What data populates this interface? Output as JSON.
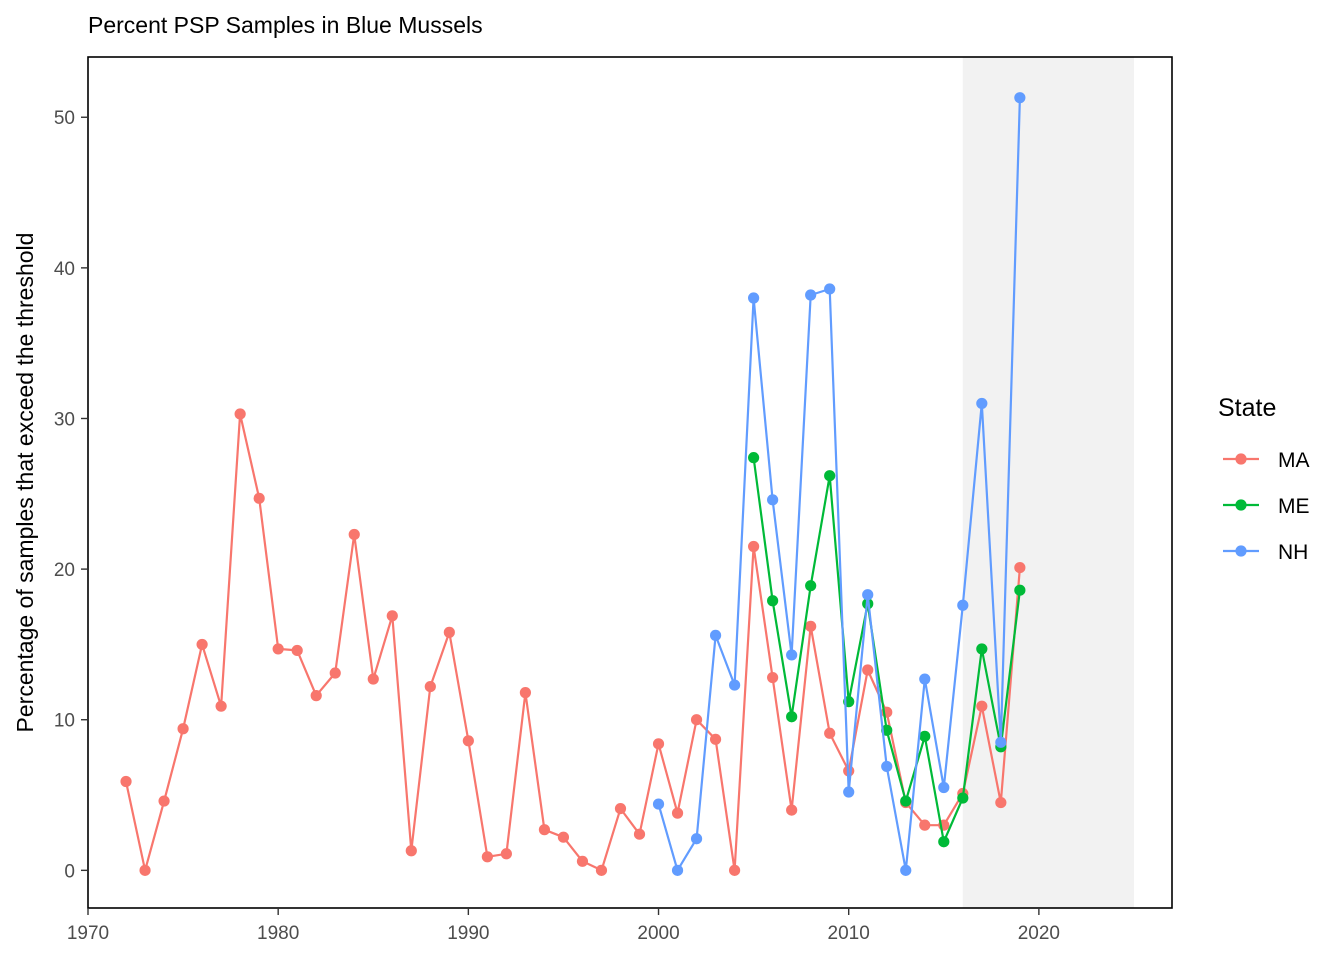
{
  "chart_data": {
    "type": "line",
    "title": "Percent PSP Samples in Blue Mussels",
    "xlabel": "",
    "ylabel": "Percentage of samples that exceed the threshold",
    "xlim": [
      1970,
      2027
    ],
    "ylim": [
      -2.5,
      54
    ],
    "x_ticks": [
      1970,
      1980,
      1990,
      2000,
      2010,
      2020
    ],
    "y_ticks": [
      0,
      10,
      20,
      30,
      40,
      50
    ],
    "grid": false,
    "shaded_region": {
      "x_start": 2016,
      "x_end": 2025
    },
    "legend": {
      "title": "State",
      "position": "right"
    },
    "series": [
      {
        "name": "MA",
        "color": "#F8766D",
        "x": [
          1972,
          1973,
          1974,
          1975,
          1976,
          1977,
          1978,
          1979,
          1980,
          1981,
          1982,
          1983,
          1984,
          1985,
          1986,
          1987,
          1988,
          1989,
          1990,
          1991,
          1992,
          1993,
          1994,
          1995,
          1996,
          1997,
          1998,
          1999,
          2000,
          2001,
          2002,
          2003,
          2004,
          2005,
          2006,
          2007,
          2008,
          2009,
          2010,
          2011,
          2012,
          2013,
          2014,
          2015,
          2016,
          2017,
          2018,
          2019
        ],
        "y": [
          5.9,
          0,
          4.6,
          9.4,
          15.0,
          10.9,
          30.3,
          24.7,
          14.7,
          14.6,
          11.6,
          13.1,
          22.3,
          12.7,
          16.9,
          1.3,
          12.2,
          15.8,
          8.6,
          0.9,
          1.1,
          11.8,
          2.7,
          2.2,
          0.6,
          0,
          4.1,
          2.4,
          8.4,
          3.8,
          10.0,
          8.7,
          0,
          21.5,
          12.8,
          4.0,
          16.2,
          9.1,
          6.6,
          13.3,
          10.5,
          4.5,
          3.0,
          3.0,
          5.1,
          10.9,
          4.5,
          20.1
        ]
      },
      {
        "name": "ME",
        "color": "#00BA38",
        "x": [
          2005,
          2006,
          2007,
          2008,
          2009,
          2010,
          2011,
          2012,
          2013,
          2014,
          2015,
          2016,
          2017,
          2018,
          2019
        ],
        "y": [
          27.4,
          17.9,
          10.2,
          18.9,
          26.2,
          11.2,
          17.7,
          9.3,
          4.6,
          8.9,
          1.9,
          4.8,
          14.7,
          8.2,
          18.6
        ]
      },
      {
        "name": "NH",
        "color": "#619CFF",
        "x": [
          2000,
          2001,
          2002,
          2003,
          2004,
          2005,
          2006,
          2007,
          2008,
          2009,
          2010,
          2011,
          2012,
          2013,
          2014,
          2015,
          2016,
          2017,
          2018,
          2019
        ],
        "y": [
          4.4,
          0,
          2.1,
          15.6,
          12.3,
          38.0,
          24.6,
          14.3,
          38.2,
          38.6,
          5.2,
          18.3,
          6.9,
          0,
          12.7,
          5.5,
          17.6,
          31.0,
          8.5,
          51.3
        ]
      }
    ]
  }
}
